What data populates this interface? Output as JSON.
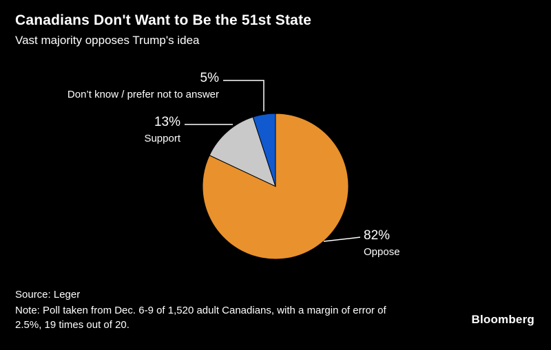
{
  "chart_data": {
    "type": "pie",
    "title": "Canadians Don't Want to Be the 51st State",
    "subtitle": "Vast majority opposes Trump's idea",
    "slices": [
      {
        "label": "Oppose",
        "value": 82,
        "display": "82%",
        "color": "#E8912D"
      },
      {
        "label": "Support",
        "value": 13,
        "display": "13%",
        "color": "#C9C9C9"
      },
      {
        "label": "Don’t know / prefer not to answer",
        "value": 5,
        "display": "5%",
        "color": "#1159CE"
      }
    ],
    "start_angle_deg": -90,
    "direction": "clockwise",
    "legend_position": "none",
    "background_color": "#000000",
    "label_color": "#FFFFFF"
  },
  "footer": {
    "source": "Source: Leger",
    "note": "Note: Poll taken from Dec. 6-9 of 1,520 adult Canadians, with a margin of error of 2.5%, 19 times out of 20.",
    "brand": "Bloomberg"
  }
}
